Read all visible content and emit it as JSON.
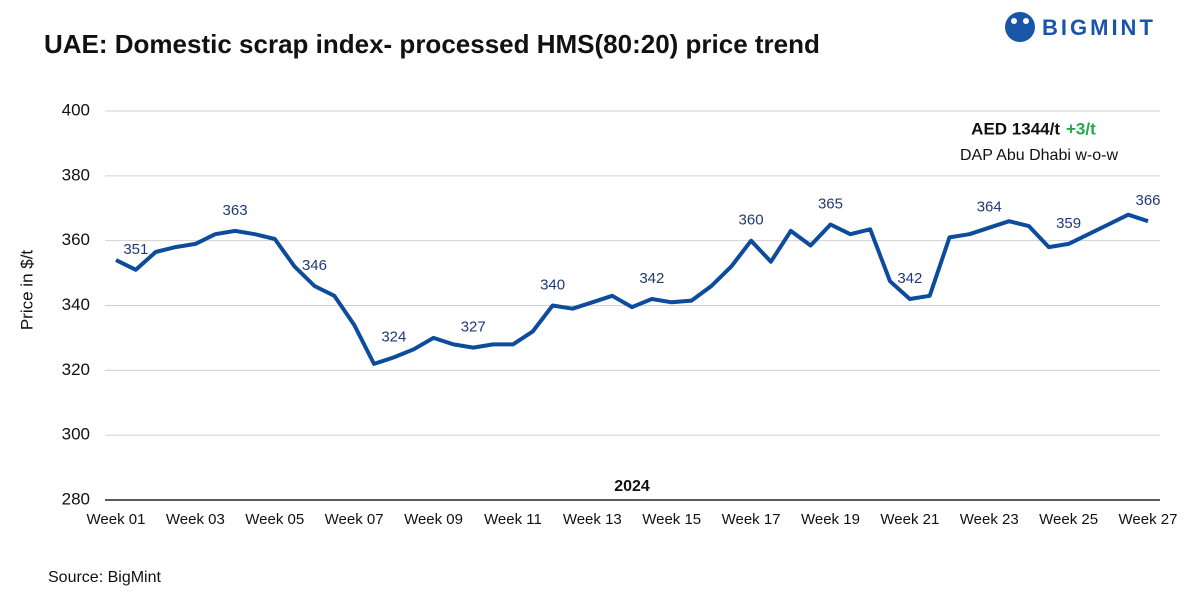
{
  "chart_data": {
    "type": "line",
    "title": "UAE: Domestic scrap index- processed HMS(80:20) price trend",
    "brand": "BIGMINT",
    "source": "Source: BigMint",
    "y_label": "Price in $/t",
    "x_label": "2024",
    "annotation": {
      "price": "AED 1344/t",
      "change": "+3/t",
      "change_color": "#22a84a",
      "note": "DAP Abu Dhabi w-o-w"
    },
    "categories": [
      "Week 01",
      null,
      null,
      null,
      "Week 03",
      null,
      null,
      null,
      "Week 05",
      null,
      null,
      null,
      "Week 07",
      null,
      null,
      null,
      "Week 09",
      null,
      null,
      null,
      "Week 11",
      null,
      null,
      null,
      "Week 13",
      null,
      null,
      null,
      "Week 15",
      null,
      null,
      null,
      "Week 17",
      null,
      null,
      null,
      "Week 19",
      null,
      null,
      null,
      "Week 21",
      null,
      null,
      null,
      "Week 23",
      null,
      null,
      null,
      "Week 25",
      null,
      null,
      null,
      "Week 27"
    ],
    "series": [
      {
        "name": "Processed HMS(80:20)",
        "color": "#0d4c9c",
        "values": [
          354,
          351,
          356.5,
          358,
          359,
          362,
          363,
          362,
          360.5,
          352,
          346,
          343,
          334,
          322,
          324,
          326.5,
          330,
          328,
          327,
          328,
          328,
          332,
          340,
          339,
          341,
          343,
          339.5,
          342,
          341,
          341.5,
          346,
          352,
          360,
          353.5,
          363,
          358.5,
          365,
          362,
          363.5,
          347.5,
          342,
          343,
          361,
          362,
          364,
          366,
          364.5,
          358,
          359,
          362,
          365,
          368,
          366
        ],
        "value_labels": [
          null,
          "351",
          null,
          null,
          null,
          null,
          "363",
          null,
          null,
          null,
          "346",
          null,
          null,
          null,
          "324",
          null,
          null,
          null,
          "327",
          null,
          null,
          null,
          "340",
          null,
          null,
          null,
          null,
          "342",
          null,
          null,
          null,
          null,
          "360",
          null,
          null,
          null,
          "365",
          null,
          null,
          null,
          "342",
          null,
          null,
          null,
          "364",
          null,
          null,
          null,
          "359",
          null,
          null,
          null,
          "366"
        ]
      }
    ],
    "ylim": [
      280,
      400
    ],
    "yticks": [
      280,
      300,
      320,
      340,
      360,
      380,
      400
    ],
    "grid": true
  }
}
